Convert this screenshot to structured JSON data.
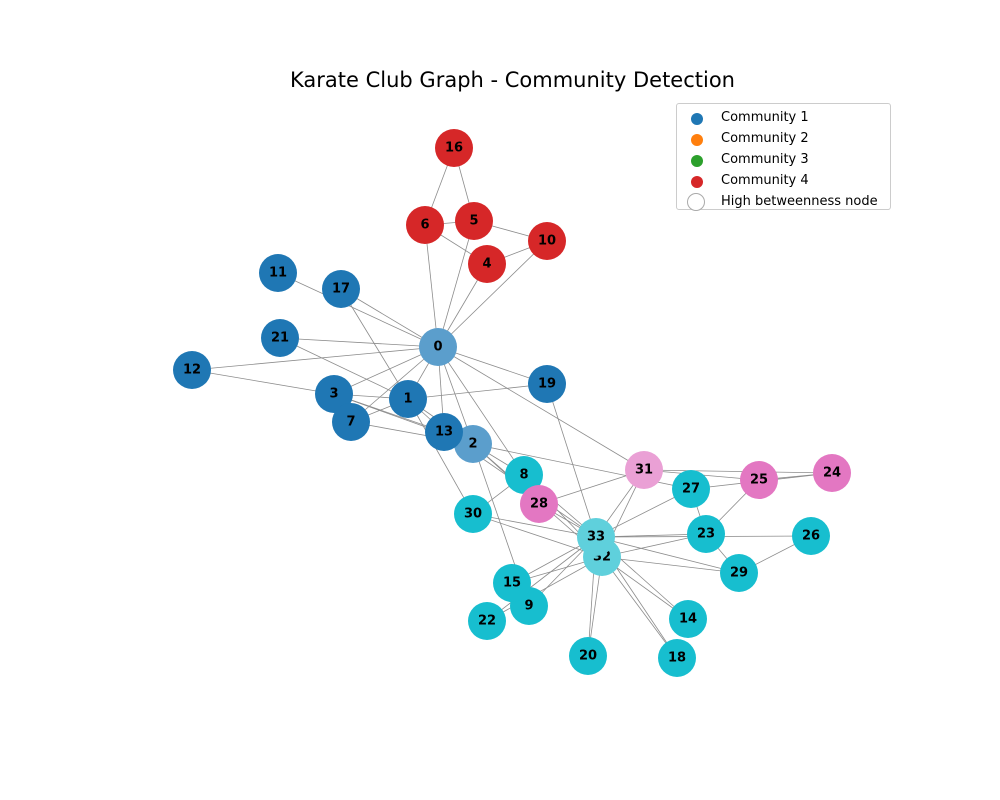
{
  "title": "Karate Club Graph - Community Detection",
  "legend": {
    "items": [
      {
        "label": "Community 1",
        "color": "#1f77b4"
      },
      {
        "label": "Community 2",
        "color": "#ff7f0e"
      },
      {
        "label": "Community 3",
        "color": "#2ca02c"
      },
      {
        "label": "Community 4",
        "color": "#d62728"
      }
    ],
    "high_betweenness_label": "High betweenness node"
  },
  "node_colors": {
    "blue": "#1f77b4",
    "blue_light": "#5b9ecc",
    "red": "#d62728",
    "cyan": "#17becf",
    "cyan_light": "#5fd0dc",
    "pink": "#e377c2",
    "pink_light": "#eaa0d5"
  },
  "nodes": [
    {
      "id": "0",
      "color": "blue_light"
    },
    {
      "id": "1",
      "color": "blue"
    },
    {
      "id": "2",
      "color": "blue_light"
    },
    {
      "id": "3",
      "color": "blue"
    },
    {
      "id": "4",
      "color": "red"
    },
    {
      "id": "5",
      "color": "red"
    },
    {
      "id": "6",
      "color": "red"
    },
    {
      "id": "7",
      "color": "blue"
    },
    {
      "id": "8",
      "color": "cyan"
    },
    {
      "id": "9",
      "color": "cyan"
    },
    {
      "id": "10",
      "color": "red"
    },
    {
      "id": "11",
      "color": "blue"
    },
    {
      "id": "12",
      "color": "blue"
    },
    {
      "id": "13",
      "color": "blue"
    },
    {
      "id": "14",
      "color": "cyan"
    },
    {
      "id": "15",
      "color": "cyan"
    },
    {
      "id": "16",
      "color": "red"
    },
    {
      "id": "17",
      "color": "blue"
    },
    {
      "id": "18",
      "color": "cyan"
    },
    {
      "id": "19",
      "color": "blue"
    },
    {
      "id": "20",
      "color": "cyan"
    },
    {
      "id": "21",
      "color": "blue"
    },
    {
      "id": "22",
      "color": "cyan"
    },
    {
      "id": "23",
      "color": "cyan"
    },
    {
      "id": "24",
      "color": "pink"
    },
    {
      "id": "25",
      "color": "pink"
    },
    {
      "id": "26",
      "color": "cyan"
    },
    {
      "id": "27",
      "color": "cyan"
    },
    {
      "id": "28",
      "color": "pink"
    },
    {
      "id": "29",
      "color": "cyan"
    },
    {
      "id": "30",
      "color": "cyan"
    },
    {
      "id": "31",
      "color": "pink_light"
    },
    {
      "id": "32",
      "color": "cyan_light"
    },
    {
      "id": "33",
      "color": "cyan_light"
    }
  ],
  "edges": [
    [
      "0",
      "1"
    ],
    [
      "0",
      "2"
    ],
    [
      "0",
      "3"
    ],
    [
      "0",
      "4"
    ],
    [
      "0",
      "5"
    ],
    [
      "0",
      "6"
    ],
    [
      "0",
      "7"
    ],
    [
      "0",
      "8"
    ],
    [
      "0",
      "10"
    ],
    [
      "0",
      "11"
    ],
    [
      "0",
      "12"
    ],
    [
      "0",
      "13"
    ],
    [
      "0",
      "17"
    ],
    [
      "0",
      "19"
    ],
    [
      "0",
      "21"
    ],
    [
      "0",
      "31"
    ],
    [
      "1",
      "2"
    ],
    [
      "1",
      "3"
    ],
    [
      "1",
      "7"
    ],
    [
      "1",
      "13"
    ],
    [
      "1",
      "17"
    ],
    [
      "1",
      "19"
    ],
    [
      "1",
      "21"
    ],
    [
      "1",
      "30"
    ],
    [
      "2",
      "3"
    ],
    [
      "2",
      "7"
    ],
    [
      "2",
      "8"
    ],
    [
      "2",
      "9"
    ],
    [
      "2",
      "13"
    ],
    [
      "2",
      "27"
    ],
    [
      "2",
      "28"
    ],
    [
      "2",
      "32"
    ],
    [
      "3",
      "7"
    ],
    [
      "3",
      "12"
    ],
    [
      "3",
      "13"
    ],
    [
      "4",
      "6"
    ],
    [
      "4",
      "10"
    ],
    [
      "5",
      "6"
    ],
    [
      "5",
      "10"
    ],
    [
      "5",
      "16"
    ],
    [
      "6",
      "16"
    ],
    [
      "8",
      "30"
    ],
    [
      "8",
      "32"
    ],
    [
      "8",
      "33"
    ],
    [
      "9",
      "33"
    ],
    [
      "13",
      "33"
    ],
    [
      "14",
      "32"
    ],
    [
      "14",
      "33"
    ],
    [
      "15",
      "32"
    ],
    [
      "15",
      "33"
    ],
    [
      "18",
      "32"
    ],
    [
      "18",
      "33"
    ],
    [
      "19",
      "33"
    ],
    [
      "20",
      "32"
    ],
    [
      "20",
      "33"
    ],
    [
      "22",
      "32"
    ],
    [
      "22",
      "33"
    ],
    [
      "23",
      "25"
    ],
    [
      "23",
      "27"
    ],
    [
      "23",
      "29"
    ],
    [
      "23",
      "32"
    ],
    [
      "23",
      "33"
    ],
    [
      "24",
      "25"
    ],
    [
      "24",
      "27"
    ],
    [
      "24",
      "31"
    ],
    [
      "25",
      "31"
    ],
    [
      "26",
      "29"
    ],
    [
      "26",
      "33"
    ],
    [
      "27",
      "33"
    ],
    [
      "28",
      "31"
    ],
    [
      "28",
      "33"
    ],
    [
      "29",
      "32"
    ],
    [
      "29",
      "33"
    ],
    [
      "30",
      "32"
    ],
    [
      "30",
      "33"
    ],
    [
      "31",
      "32"
    ],
    [
      "31",
      "33"
    ],
    [
      "32",
      "33"
    ]
  ]
}
